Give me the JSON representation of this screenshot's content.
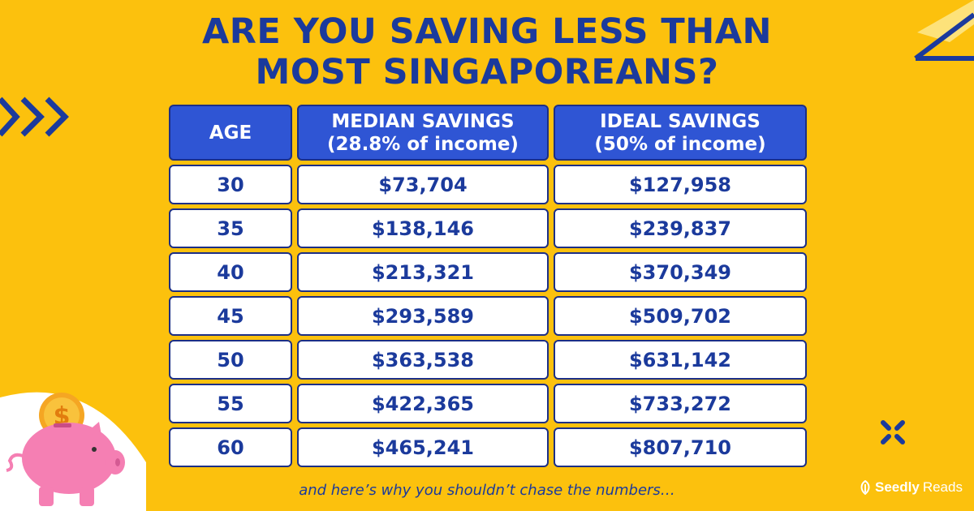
{
  "title": {
    "line1": "ARE YOU SAVING LESS THAN",
    "line2": "MOST SINGAPOREANS?"
  },
  "table": {
    "headers": [
      {
        "line1": "AGE",
        "line2": ""
      },
      {
        "line1": "MEDIAN SAVINGS",
        "line2": "(28.8% of income)"
      },
      {
        "line1": "IDEAL SAVINGS",
        "line2": "(50% of income)"
      }
    ],
    "rows": [
      {
        "age": "30",
        "median": "$73,704",
        "ideal": "$127,958"
      },
      {
        "age": "35",
        "median": "$138,146",
        "ideal": "$239,837"
      },
      {
        "age": "40",
        "median": "$213,321",
        "ideal": "$370,349"
      },
      {
        "age": "45",
        "median": "$293,589",
        "ideal": "$509,702"
      },
      {
        "age": "50",
        "median": "$363,538",
        "ideal": "$631,142"
      },
      {
        "age": "55",
        "median": "$422,365",
        "ideal": "$733,272"
      },
      {
        "age": "60",
        "median": "$465,241",
        "ideal": "$807,710"
      }
    ]
  },
  "footer": {
    "text": "and here’s why you shouldn’t chase the numbers…"
  },
  "brand": {
    "name_bold": "Seedly",
    "name_light": "Reads",
    "icon": "seedly-leaf-icon"
  },
  "coin": {
    "symbol": "$"
  },
  "colors": {
    "background": "#fcc10d",
    "primary": "#1b3a9c",
    "header_fill": "#2f55d4",
    "pig": "#f57fb3"
  }
}
